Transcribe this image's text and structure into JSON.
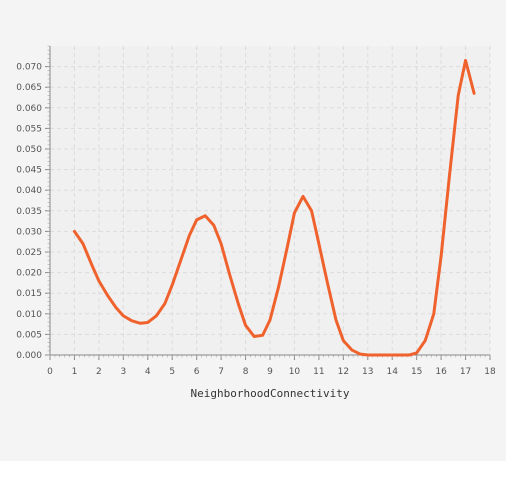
{
  "chart_data": {
    "type": "line",
    "title": "",
    "xlabel": "NeighborhoodConnectivity",
    "ylabel": "",
    "xlim": [
      0,
      18
    ],
    "ylim": [
      0,
      0.075
    ],
    "xticks": [
      "0",
      "1",
      "2",
      "3",
      "4",
      "5",
      "6",
      "7",
      "8",
      "9",
      "10",
      "11",
      "12",
      "13",
      "14",
      "15",
      "16",
      "17",
      "18"
    ],
    "yticks": [
      "0.000",
      "0.005",
      "0.010",
      "0.015",
      "0.020",
      "0.025",
      "0.030",
      "0.035",
      "0.040",
      "0.045",
      "0.050",
      "0.055",
      "0.060",
      "0.065",
      "0.070"
    ],
    "grid": true,
    "series": [
      {
        "color": "#f0622d",
        "x": [
          1.0,
          1.35,
          1.7,
          2.0,
          2.35,
          2.7,
          3.0,
          3.35,
          3.7,
          4.0,
          4.35,
          4.7,
          5.0,
          5.35,
          5.7,
          6.0,
          6.35,
          6.7,
          7.0,
          7.35,
          7.7,
          8.0,
          8.35,
          8.7,
          9.0,
          9.35,
          9.7,
          10.0,
          10.35,
          10.7,
          11.0,
          11.35,
          11.7,
          12.0,
          12.35,
          12.7,
          13.0,
          13.35,
          13.7,
          14.0,
          14.35,
          14.7,
          15.0,
          15.35,
          15.7,
          16.0,
          16.35,
          16.7,
          17.0,
          17.35
        ],
        "y": [
          0.03,
          0.027,
          0.022,
          0.018,
          0.0145,
          0.0115,
          0.0095,
          0.0083,
          0.0077,
          0.0079,
          0.0095,
          0.0125,
          0.017,
          0.023,
          0.029,
          0.0328,
          0.0338,
          0.0315,
          0.027,
          0.0195,
          0.0125,
          0.0072,
          0.0045,
          0.0048,
          0.0085,
          0.0165,
          0.026,
          0.0345,
          0.0385,
          0.035,
          0.027,
          0.0175,
          0.0085,
          0.0035,
          0.0012,
          0.0002,
          0.0,
          0.0,
          0.0,
          0.0,
          0.0,
          0.0,
          0.0005,
          0.0035,
          0.01,
          0.024,
          0.044,
          0.063,
          0.0715,
          0.0635
        ]
      }
    ]
  }
}
